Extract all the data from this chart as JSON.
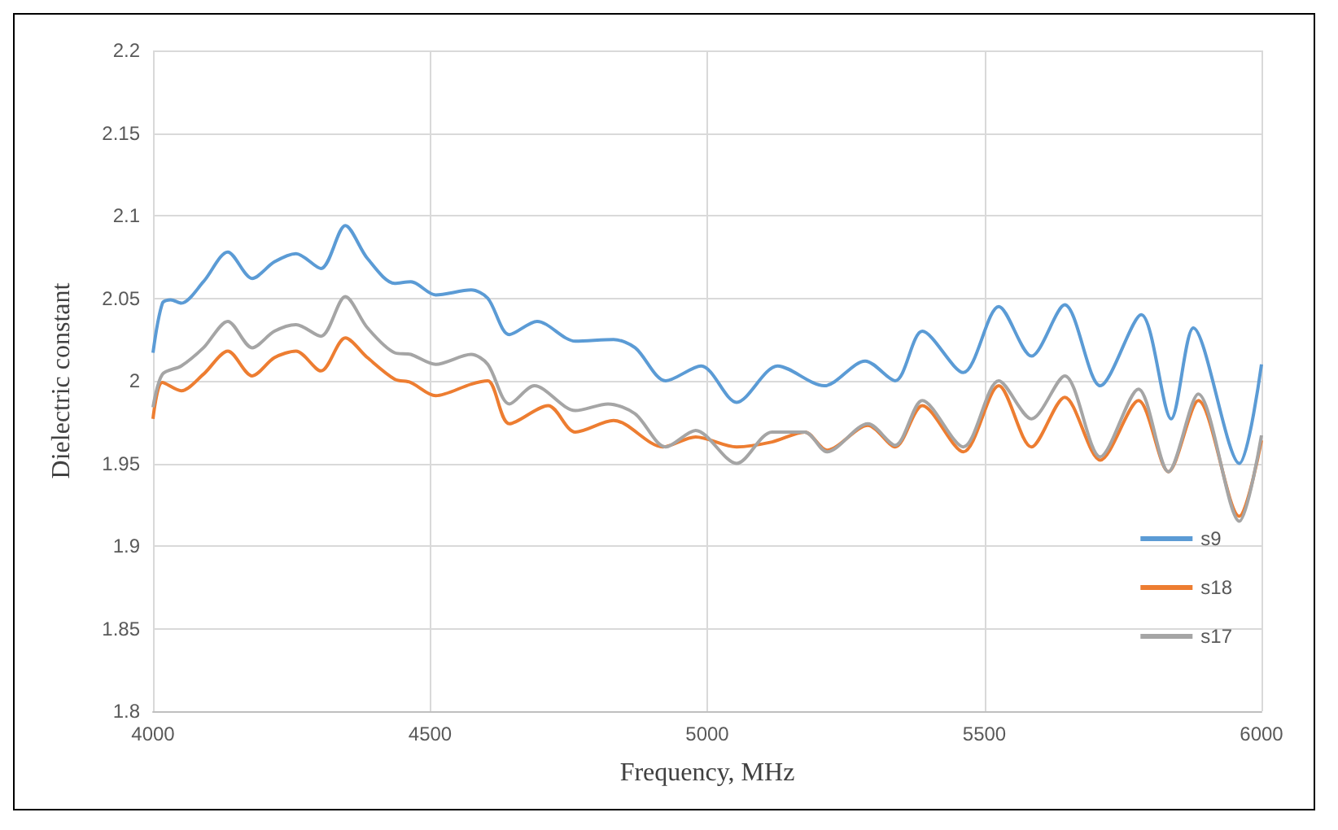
{
  "chart_data": {
    "type": "line",
    "xlabel": "Frequency, MHz",
    "ylabel": "Dielectric constant",
    "xlim": [
      4000,
      6000
    ],
    "xticks": [
      4000,
      4500,
      5000,
      5500,
      6000
    ],
    "ylim": [
      1.8,
      2.2
    ],
    "yticks": [
      1.8,
      1.85,
      1.9,
      1.95,
      2,
      2.05,
      2.1,
      2.15,
      2.2
    ],
    "grid": true,
    "legend": "bottom right",
    "marker": "none",
    "line_style": "solid",
    "series": [
      {
        "name": "s9",
        "color": "#5b9bd5",
        "x": [
          4000,
          4017,
          4032,
          4051,
          4091,
          4135,
          4179,
          4219,
          4258,
          4303,
          4347,
          4387,
          4436,
          4465,
          4510,
          4574,
          4604,
          4643,
          4693,
          4762,
          4831,
          4870,
          4925,
          4989,
          5053,
          5127,
          5211,
          5285,
          5339,
          5388,
          5462,
          5526,
          5585,
          5645,
          5709,
          5783,
          5837,
          5877,
          5960,
          6000
        ],
        "values": [
          2.017,
          2.047,
          2.049,
          2.047,
          2.06,
          2.078,
          2.062,
          2.072,
          2.077,
          2.068,
          2.094,
          2.074,
          2.059,
          2.06,
          2.052,
          2.055,
          2.05,
          2.028,
          2.036,
          2.024,
          2.025,
          2.02,
          2.0,
          2.009,
          1.987,
          2.009,
          1.997,
          2.012,
          2.0,
          2.03,
          2.005,
          2.045,
          2.015,
          2.046,
          1.997,
          2.04,
          1.977,
          2.032,
          1.95,
          2.01
        ]
      },
      {
        "name": "s18",
        "color": "#ed7d31",
        "x": [
          4000,
          4017,
          4051,
          4091,
          4135,
          4179,
          4219,
          4258,
          4303,
          4347,
          4387,
          4436,
          4465,
          4510,
          4574,
          4604,
          4643,
          4713,
          4762,
          4831,
          4920,
          4979,
          5053,
          5117,
          5176,
          5216,
          5290,
          5339,
          5388,
          5462,
          5526,
          5585,
          5645,
          5709,
          5778,
          5832,
          5886,
          5960,
          6000
        ],
        "values": [
          1.977,
          1.999,
          1.994,
          2.004,
          2.018,
          2.003,
          2.014,
          2.018,
          2.006,
          2.026,
          2.014,
          2.001,
          1.999,
          1.991,
          1.998,
          2.0,
          1.974,
          1.985,
          1.969,
          1.976,
          1.96,
          1.966,
          1.96,
          1.963,
          1.969,
          1.958,
          1.973,
          1.96,
          1.985,
          1.957,
          1.997,
          1.96,
          1.99,
          1.952,
          1.988,
          1.945,
          1.988,
          1.918,
          1.964
        ]
      },
      {
        "name": "s17",
        "color": "#a5a5a5",
        "x": [
          4000,
          4017,
          4051,
          4091,
          4135,
          4179,
          4219,
          4258,
          4303,
          4347,
          4387,
          4436,
          4465,
          4510,
          4574,
          4604,
          4643,
          4688,
          4762,
          4821,
          4870,
          4925,
          4979,
          5053,
          5117,
          5176,
          5216,
          5290,
          5339,
          5388,
          5462,
          5526,
          5585,
          5645,
          5709,
          5778,
          5832,
          5886,
          5960,
          6000
        ],
        "values": [
          1.984,
          2.004,
          2.009,
          2.02,
          2.036,
          2.02,
          2.03,
          2.034,
          2.027,
          2.051,
          2.032,
          2.017,
          2.016,
          2.01,
          2.016,
          2.01,
          1.986,
          1.997,
          1.982,
          1.986,
          1.98,
          1.96,
          1.97,
          1.95,
          1.969,
          1.969,
          1.957,
          1.974,
          1.961,
          1.988,
          1.96,
          2.0,
          1.977,
          2.003,
          1.954,
          1.995,
          1.945,
          1.992,
          1.915,
          1.967
        ]
      }
    ]
  }
}
